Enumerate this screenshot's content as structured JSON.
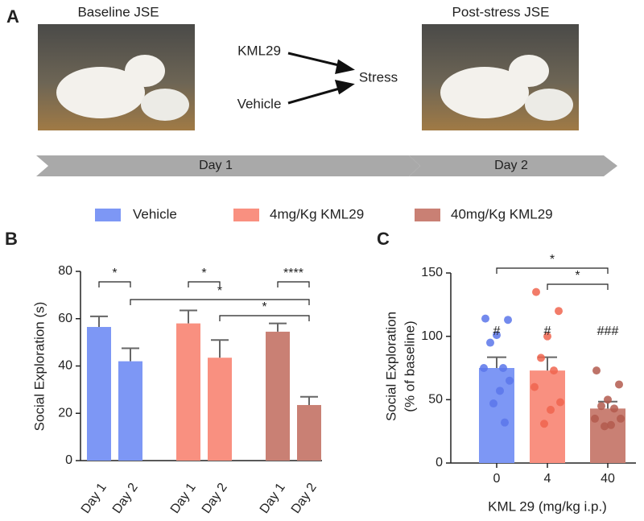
{
  "panel_labels": [
    "A",
    "B",
    "C"
  ],
  "panel_a": {
    "left_caption": "Baseline JSE",
    "right_caption": "Post-stress JSE",
    "treatments": [
      "KML29",
      "Vehicle"
    ],
    "outcome": "Stress",
    "timeline": [
      "Day 1",
      "Day 2"
    ]
  },
  "chart_data": [
    {
      "type": "bar",
      "ylabel": "Social Exploration (s)",
      "categories": [
        "Day 1",
        "Day 2"
      ],
      "series": [
        {
          "name": "Vehicle",
          "color": "#7d97f5",
          "values": [
            56.5,
            42
          ],
          "errors": [
            4.5,
            5.5
          ]
        },
        {
          "name": "4mg/Kg KML29",
          "color": "#f99080",
          "values": [
            58,
            43.5
          ],
          "errors": [
            5.5,
            7.5
          ]
        },
        {
          "name": "40mg/Kg KML29",
          "color": "#c98074",
          "values": [
            54.5,
            23.5
          ],
          "errors": [
            3.5,
            3.5
          ]
        }
      ],
      "ylim": [
        0,
        80
      ],
      "yticks": [
        0,
        20,
        40,
        60,
        80
      ],
      "significance": [
        "*",
        "*",
        "****",
        "*",
        "*"
      ]
    },
    {
      "type": "bar",
      "ylabel": [
        "Social Exploration",
        "(% of baseline)"
      ],
      "xlabel": "KML 29 (mg/kg i.p.)",
      "categories": [
        "0",
        "4",
        "40"
      ],
      "values": [
        75,
        73,
        43
      ],
      "errors": [
        8.5,
        10.5,
        5.5
      ],
      "colors": [
        "#7d97f5",
        "#f99080",
        "#c98074"
      ],
      "point_colors": [
        "#5a76ea",
        "#f0654f",
        "#b35a4d"
      ],
      "points": [
        [
          114,
          113,
          101,
          95,
          75,
          75,
          65,
          57,
          47,
          32
        ],
        [
          135,
          120,
          100,
          83,
          73,
          60,
          48,
          42,
          31
        ],
        [
          73,
          62,
          50,
          45,
          43,
          35,
          35,
          30,
          29
        ]
      ],
      "annotations": [
        "#",
        "#",
        "###"
      ],
      "ylim": [
        0,
        150
      ],
      "yticks": [
        0,
        50,
        100,
        150
      ],
      "significance": [
        "*",
        "*"
      ]
    }
  ]
}
